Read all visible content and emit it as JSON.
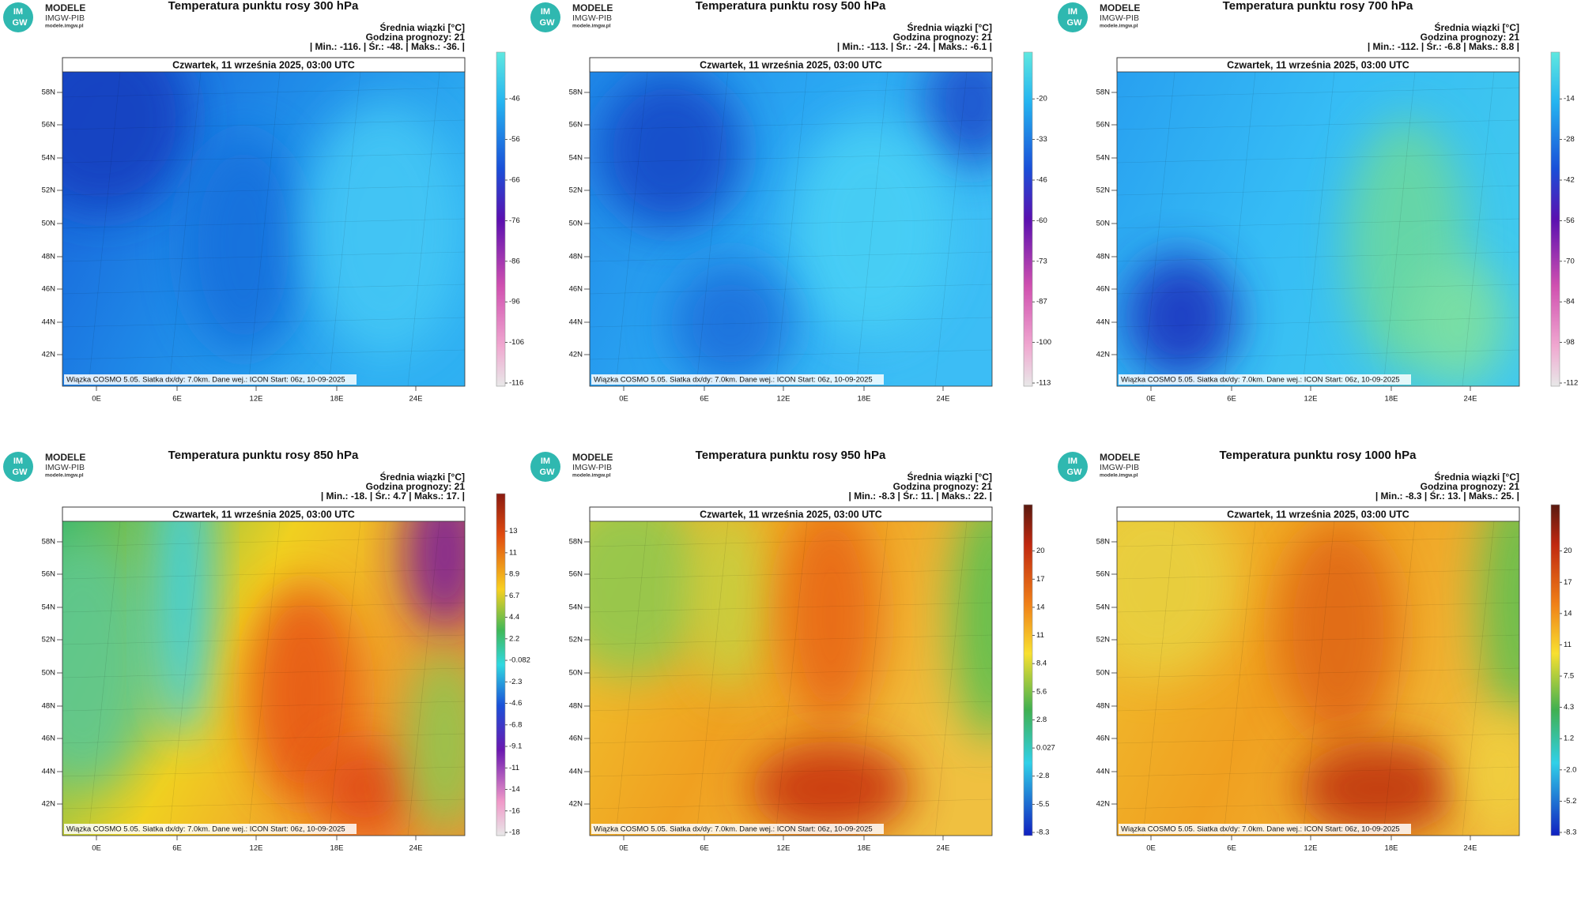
{
  "logo": {
    "badge_top": "IM",
    "badge_bottom": "GW",
    "name": "MODELE",
    "org": "IMGW-PIB",
    "url": "modele.imgw.pl"
  },
  "mean_label": "Średnia wiązki [°C]",
  "forecast_hour": "Godzina prognozy: 21",
  "date": "Czwartek, 11 września 2025, 03:00 UTC",
  "footer": "Wiązka  COSMO 5.05. Siatka dx/dy: 7.0km. Dane wej.: ICON Start: 06z, 10-09-2025",
  "lat_labels": [
    "58N",
    "56N",
    "54N",
    "52N",
    "50N",
    "48N",
    "46N",
    "44N",
    "42N"
  ],
  "lon_labels": [
    "0E",
    "6E",
    "12E",
    "18E",
    "24E"
  ],
  "panels": [
    {
      "title": "Temperatura punktu rosy 300 hPa",
      "stats": "| Min.:  -116. | Śr.:  -48. | Maks.:  -36. |",
      "colorbar": [
        "-46",
        "-56",
        "-66",
        "-76",
        "-86",
        "-96",
        "-106",
        "-116"
      ]
    },
    {
      "title": "Temperatura punktu rosy 500 hPa",
      "stats": "| Min.:  -113. | Śr.:  -24. | Maks.:  -6.1 |",
      "colorbar": [
        "-20",
        "-33",
        "-46",
        "-60",
        "-73",
        "-87",
        "-100",
        "-113"
      ]
    },
    {
      "title": "Temperatura punktu rosy 700 hPa",
      "stats": "| Min.:  -112. | Śr.:  -6.8 | Maks.:  8.8 |",
      "colorbar": [
        "-14",
        "-28",
        "-42",
        "-56",
        "-70",
        "-84",
        "-98",
        "-112"
      ]
    },
    {
      "title": "Temperatura punktu rosy 850 hPa",
      "stats": "| Min.:  -18. | Śr.:  4.7 | Maks.:  17. |",
      "colorbar": [
        "13",
        "11",
        "8.9",
        "6.7",
        "4.4",
        "2.2",
        "-0.082",
        "-2.3",
        "-4.6",
        "-6.8",
        "-9.1",
        "-11",
        "-14",
        "-16",
        "-18"
      ]
    },
    {
      "title": "Temperatura punktu rosy 950 hPa",
      "stats": "| Min.:  -8.3 | Śr.:  11. | Maks.:  22. |",
      "colorbar": [
        "20",
        "17",
        "14",
        "11",
        "8.4",
        "5.6",
        "2.8",
        "0.027",
        "-2.8",
        "-5.5",
        "-8.3"
      ]
    },
    {
      "title": "Temperatura punktu rosy 1000 hPa",
      "stats": "| Min.:  -8.3 | Śr.:  13. | Maks.:  25. |",
      "colorbar": [
        "20",
        "17",
        "14",
        "11",
        "7.5",
        "4.3",
        "1.2",
        "-2.0",
        "-5.2",
        "-8.3"
      ]
    }
  ]
}
